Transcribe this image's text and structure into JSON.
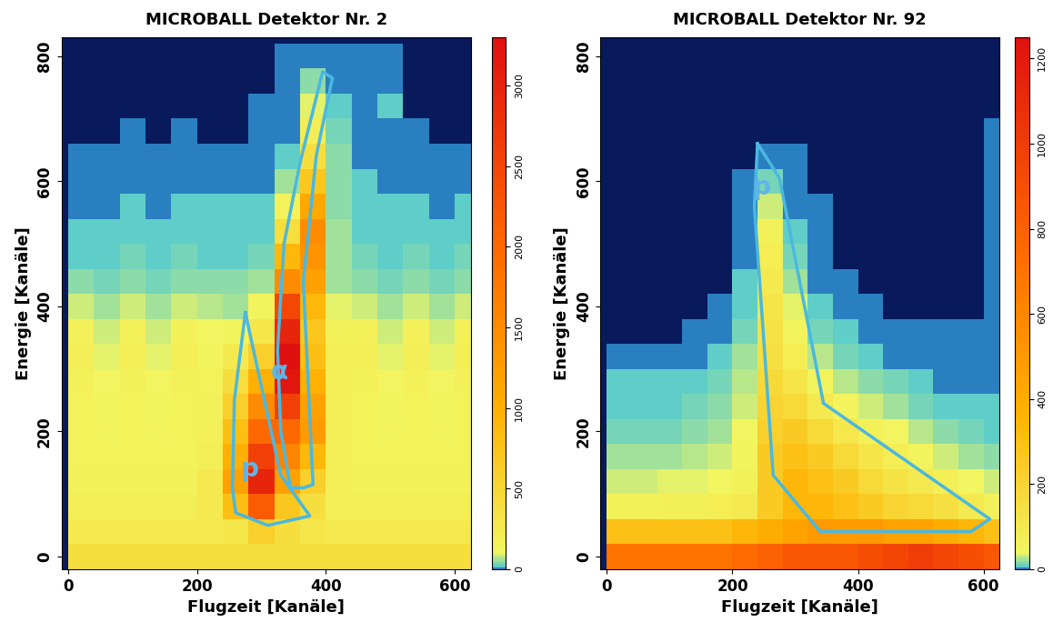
{
  "chart_data": [
    {
      "type": "heatmap",
      "title": "MICROBALL Detektor Nr. 2",
      "x_label": "Flugzeit [Kanäle]",
      "y_label": "Energie [Kanäle]",
      "xlim": [
        -10,
        625
      ],
      "ylim": [
        -20,
        830
      ],
      "xticks": [
        0,
        200,
        400,
        600
      ],
      "yticks": [
        0,
        200,
        400,
        600,
        800
      ],
      "x_edges": [
        0,
        40,
        80,
        120,
        160,
        200,
        240,
        280,
        320,
        360,
        400,
        440,
        480,
        520,
        560,
        600,
        640
      ],
      "y_edges": [
        -20,
        20,
        60,
        100,
        140,
        180,
        220,
        260,
        300,
        340,
        380,
        420,
        460,
        500,
        540,
        580,
        620,
        660,
        700,
        740,
        780,
        820
      ],
      "cells": [
        [
          400,
          400,
          400,
          400,
          400,
          400,
          400,
          400,
          400,
          400,
          400,
          400,
          400,
          400,
          400,
          400
        ],
        [
          250,
          250,
          250,
          250,
          250,
          250,
          300,
          600,
          400,
          300,
          250,
          250,
          250,
          250,
          250,
          250
        ],
        [
          200,
          200,
          200,
          200,
          200,
          250,
          800,
          2200,
          700,
          400,
          200,
          200,
          200,
          200,
          200,
          200
        ],
        [
          180,
          180,
          180,
          180,
          180,
          250,
          1200,
          3000,
          1200,
          600,
          200,
          180,
          180,
          180,
          180,
          180
        ],
        [
          150,
          150,
          150,
          150,
          150,
          200,
          1000,
          2600,
          1600,
          900,
          200,
          150,
          150,
          150,
          150,
          150
        ],
        [
          150,
          130,
          150,
          130,
          150,
          180,
          800,
          2000,
          2000,
          1300,
          200,
          150,
          130,
          150,
          130,
          150
        ],
        [
          150,
          120,
          150,
          120,
          150,
          160,
          600,
          1500,
          2600,
          1200,
          200,
          150,
          120,
          150,
          120,
          150
        ],
        [
          170,
          110,
          170,
          110,
          170,
          150,
          400,
          1000,
          3200,
          1000,
          200,
          170,
          110,
          170,
          110,
          170
        ],
        [
          200,
          100,
          200,
          100,
          200,
          130,
          250,
          600,
          3300,
          800,
          200,
          200,
          100,
          200,
          100,
          200
        ],
        [
          180,
          90,
          180,
          90,
          180,
          110,
          120,
          300,
          3000,
          700,
          180,
          180,
          90,
          180,
          90,
          180
        ],
        [
          80,
          60,
          80,
          60,
          80,
          70,
          60,
          120,
          2500,
          900,
          100,
          80,
          60,
          80,
          60,
          80
        ],
        [
          40,
          30,
          40,
          30,
          40,
          40,
          40,
          60,
          1500,
          1200,
          60,
          40,
          30,
          40,
          30,
          40
        ],
        [
          25,
          20,
          30,
          20,
          30,
          25,
          25,
          30,
          900,
          1400,
          60,
          30,
          20,
          30,
          20,
          30
        ],
        [
          15,
          15,
          20,
          15,
          20,
          20,
          20,
          20,
          400,
          1500,
          60,
          20,
          15,
          20,
          15,
          25
        ],
        [
          10,
          10,
          15,
          10,
          15,
          15,
          15,
          15,
          150,
          1100,
          50,
          20,
          15,
          15,
          12,
          15
        ],
        [
          8,
          8,
          10,
          8,
          10,
          10,
          10,
          10,
          60,
          700,
          40,
          15,
          12,
          10,
          8,
          10
        ],
        [
          2,
          2,
          3,
          2,
          3,
          3,
          3,
          4,
          20,
          400,
          40,
          12,
          10,
          4,
          2,
          3
        ],
        [
          0,
          0,
          1,
          0,
          1,
          0,
          0,
          1,
          10,
          200,
          30,
          8,
          12,
          1,
          0,
          0
        ],
        [
          0,
          0,
          0,
          0,
          0,
          0,
          0,
          1,
          5,
          100,
          20,
          5,
          15,
          0,
          0,
          0
        ],
        [
          0,
          0,
          0,
          0,
          0,
          0,
          0,
          0,
          3,
          50,
          10,
          3,
          12,
          0,
          0,
          0
        ],
        [
          0,
          0,
          0,
          0,
          0,
          0,
          0,
          0,
          2,
          10,
          5,
          2,
          8,
          0,
          0,
          0
        ]
      ],
      "colorbar": {
        "range": [
          0,
          3300
        ],
        "ticks": [
          0,
          500,
          1000,
          1500,
          2000,
          2500,
          3000
        ]
      },
      "gates": [
        {
          "label": "p",
          "label_x": 282,
          "label_y": 140,
          "x": [
            275,
            330,
            375,
            310,
            260,
            255,
            258,
            275
          ],
          "y": [
            390,
            130,
            65,
            50,
            70,
            110,
            250,
            390
          ]
        },
        {
          "label": "α",
          "label_x": 328,
          "label_y": 295,
          "x": [
            345,
            330,
            325,
            335,
            360,
            395,
            410,
            385,
            365,
            380,
            365,
            345
          ],
          "y": [
            110,
            200,
            330,
            500,
            630,
            775,
            765,
            640,
            440,
            115,
            110,
            110
          ]
        }
      ]
    },
    {
      "type": "heatmap",
      "title": "MICROBALL Detektor Nr. 92",
      "x_label": "Flugzeit [Kanäle]",
      "y_label": "Energie [Kanäle]",
      "xlim": [
        -10,
        625
      ],
      "ylim": [
        -20,
        830
      ],
      "xticks": [
        0,
        200,
        400,
        600
      ],
      "yticks": [
        0,
        200,
        400,
        600,
        800
      ],
      "x_edges": [
        0,
        40,
        80,
        120,
        160,
        200,
        240,
        280,
        320,
        360,
        400,
        440,
        480,
        520,
        560,
        600,
        640
      ],
      "y_edges": [
        -20,
        20,
        60,
        100,
        140,
        180,
        220,
        260,
        300,
        340,
        380,
        420,
        460,
        500,
        540,
        580,
        620,
        660,
        700,
        740,
        780,
        820
      ],
      "cells": [
        [
          700,
          700,
          700,
          700,
          700,
          750,
          800,
          850,
          850,
          850,
          900,
          950,
          1000,
          950,
          900,
          850
        ],
        [
          300,
          300,
          300,
          300,
          300,
          350,
          400,
          450,
          500,
          500,
          500,
          450,
          450,
          400,
          350,
          300
        ],
        [
          60,
          60,
          70,
          70,
          80,
          100,
          250,
          350,
          350,
          300,
          250,
          200,
          180,
          150,
          100,
          60
        ],
        [
          30,
          30,
          35,
          35,
          40,
          60,
          250,
          350,
          300,
          250,
          180,
          130,
          100,
          70,
          40,
          30
        ],
        [
          20,
          20,
          20,
          25,
          30,
          50,
          250,
          300,
          250,
          180,
          120,
          80,
          50,
          30,
          20,
          15
        ],
        [
          12,
          12,
          12,
          15,
          20,
          40,
          220,
          250,
          180,
          110,
          60,
          40,
          25,
          15,
          10,
          8
        ],
        [
          8,
          8,
          8,
          10,
          15,
          30,
          200,
          180,
          100,
          50,
          30,
          20,
          12,
          8,
          6,
          5
        ],
        [
          5,
          5,
          5,
          6,
          10,
          25,
          180,
          120,
          50,
          25,
          15,
          10,
          6,
          4,
          3,
          3
        ],
        [
          2,
          2,
          2,
          3,
          5,
          20,
          150,
          80,
          25,
          10,
          6,
          4,
          3,
          2,
          2,
          2
        ],
        [
          0,
          0,
          0,
          1,
          2,
          12,
          140,
          50,
          12,
          5,
          2,
          1,
          1,
          1,
          1,
          1
        ],
        [
          0,
          0,
          0,
          0,
          1,
          8,
          120,
          35,
          6,
          2,
          1,
          0,
          0,
          0,
          0,
          1
        ],
        [
          0,
          0,
          0,
          0,
          0,
          5,
          100,
          20,
          3,
          1,
          0,
          0,
          0,
          0,
          0,
          1
        ],
        [
          0,
          0,
          0,
          0,
          0,
          3,
          80,
          12,
          2,
          0,
          0,
          0,
          0,
          0,
          0,
          1
        ],
        [
          0,
          0,
          0,
          0,
          0,
          2,
          60,
          8,
          1,
          0,
          0,
          0,
          0,
          0,
          0,
          1
        ],
        [
          0,
          0,
          0,
          0,
          0,
          1,
          30,
          4,
          1,
          0,
          0,
          0,
          0,
          0,
          0,
          1
        ],
        [
          0,
          0,
          0,
          0,
          0,
          1,
          12,
          2,
          0,
          0,
          0,
          0,
          0,
          0,
          0,
          1
        ],
        [
          0,
          0,
          0,
          0,
          0,
          0,
          4,
          1,
          0,
          0,
          0,
          0,
          0,
          0,
          0,
          1
        ],
        [
          0,
          0,
          0,
          0,
          0,
          0,
          0,
          0,
          0,
          0,
          0,
          0,
          0,
          0,
          0,
          1
        ],
        [
          0,
          0,
          0,
          0,
          0,
          0,
          0,
          0,
          0,
          0,
          0,
          0,
          0,
          0,
          0,
          0
        ],
        [
          0,
          0,
          0,
          0,
          0,
          0,
          0,
          0,
          0,
          0,
          0,
          0,
          0,
          0,
          0,
          0
        ],
        [
          0,
          0,
          0,
          0,
          0,
          0,
          0,
          0,
          0,
          0,
          0,
          0,
          0,
          0,
          0,
          0
        ]
      ],
      "colorbar": {
        "range": [
          0,
          1250
        ],
        "ticks": [
          0,
          200,
          400,
          600,
          800,
          1000,
          1200
        ]
      },
      "gates": [
        {
          "label": "p",
          "label_x": 246,
          "label_y": 590,
          "x": [
            240,
            275,
            345,
            610,
            580,
            340,
            265,
            235,
            240
          ],
          "y": [
            660,
            605,
            245,
            60,
            40,
            40,
            130,
            560,
            660
          ]
        }
      ]
    }
  ]
}
